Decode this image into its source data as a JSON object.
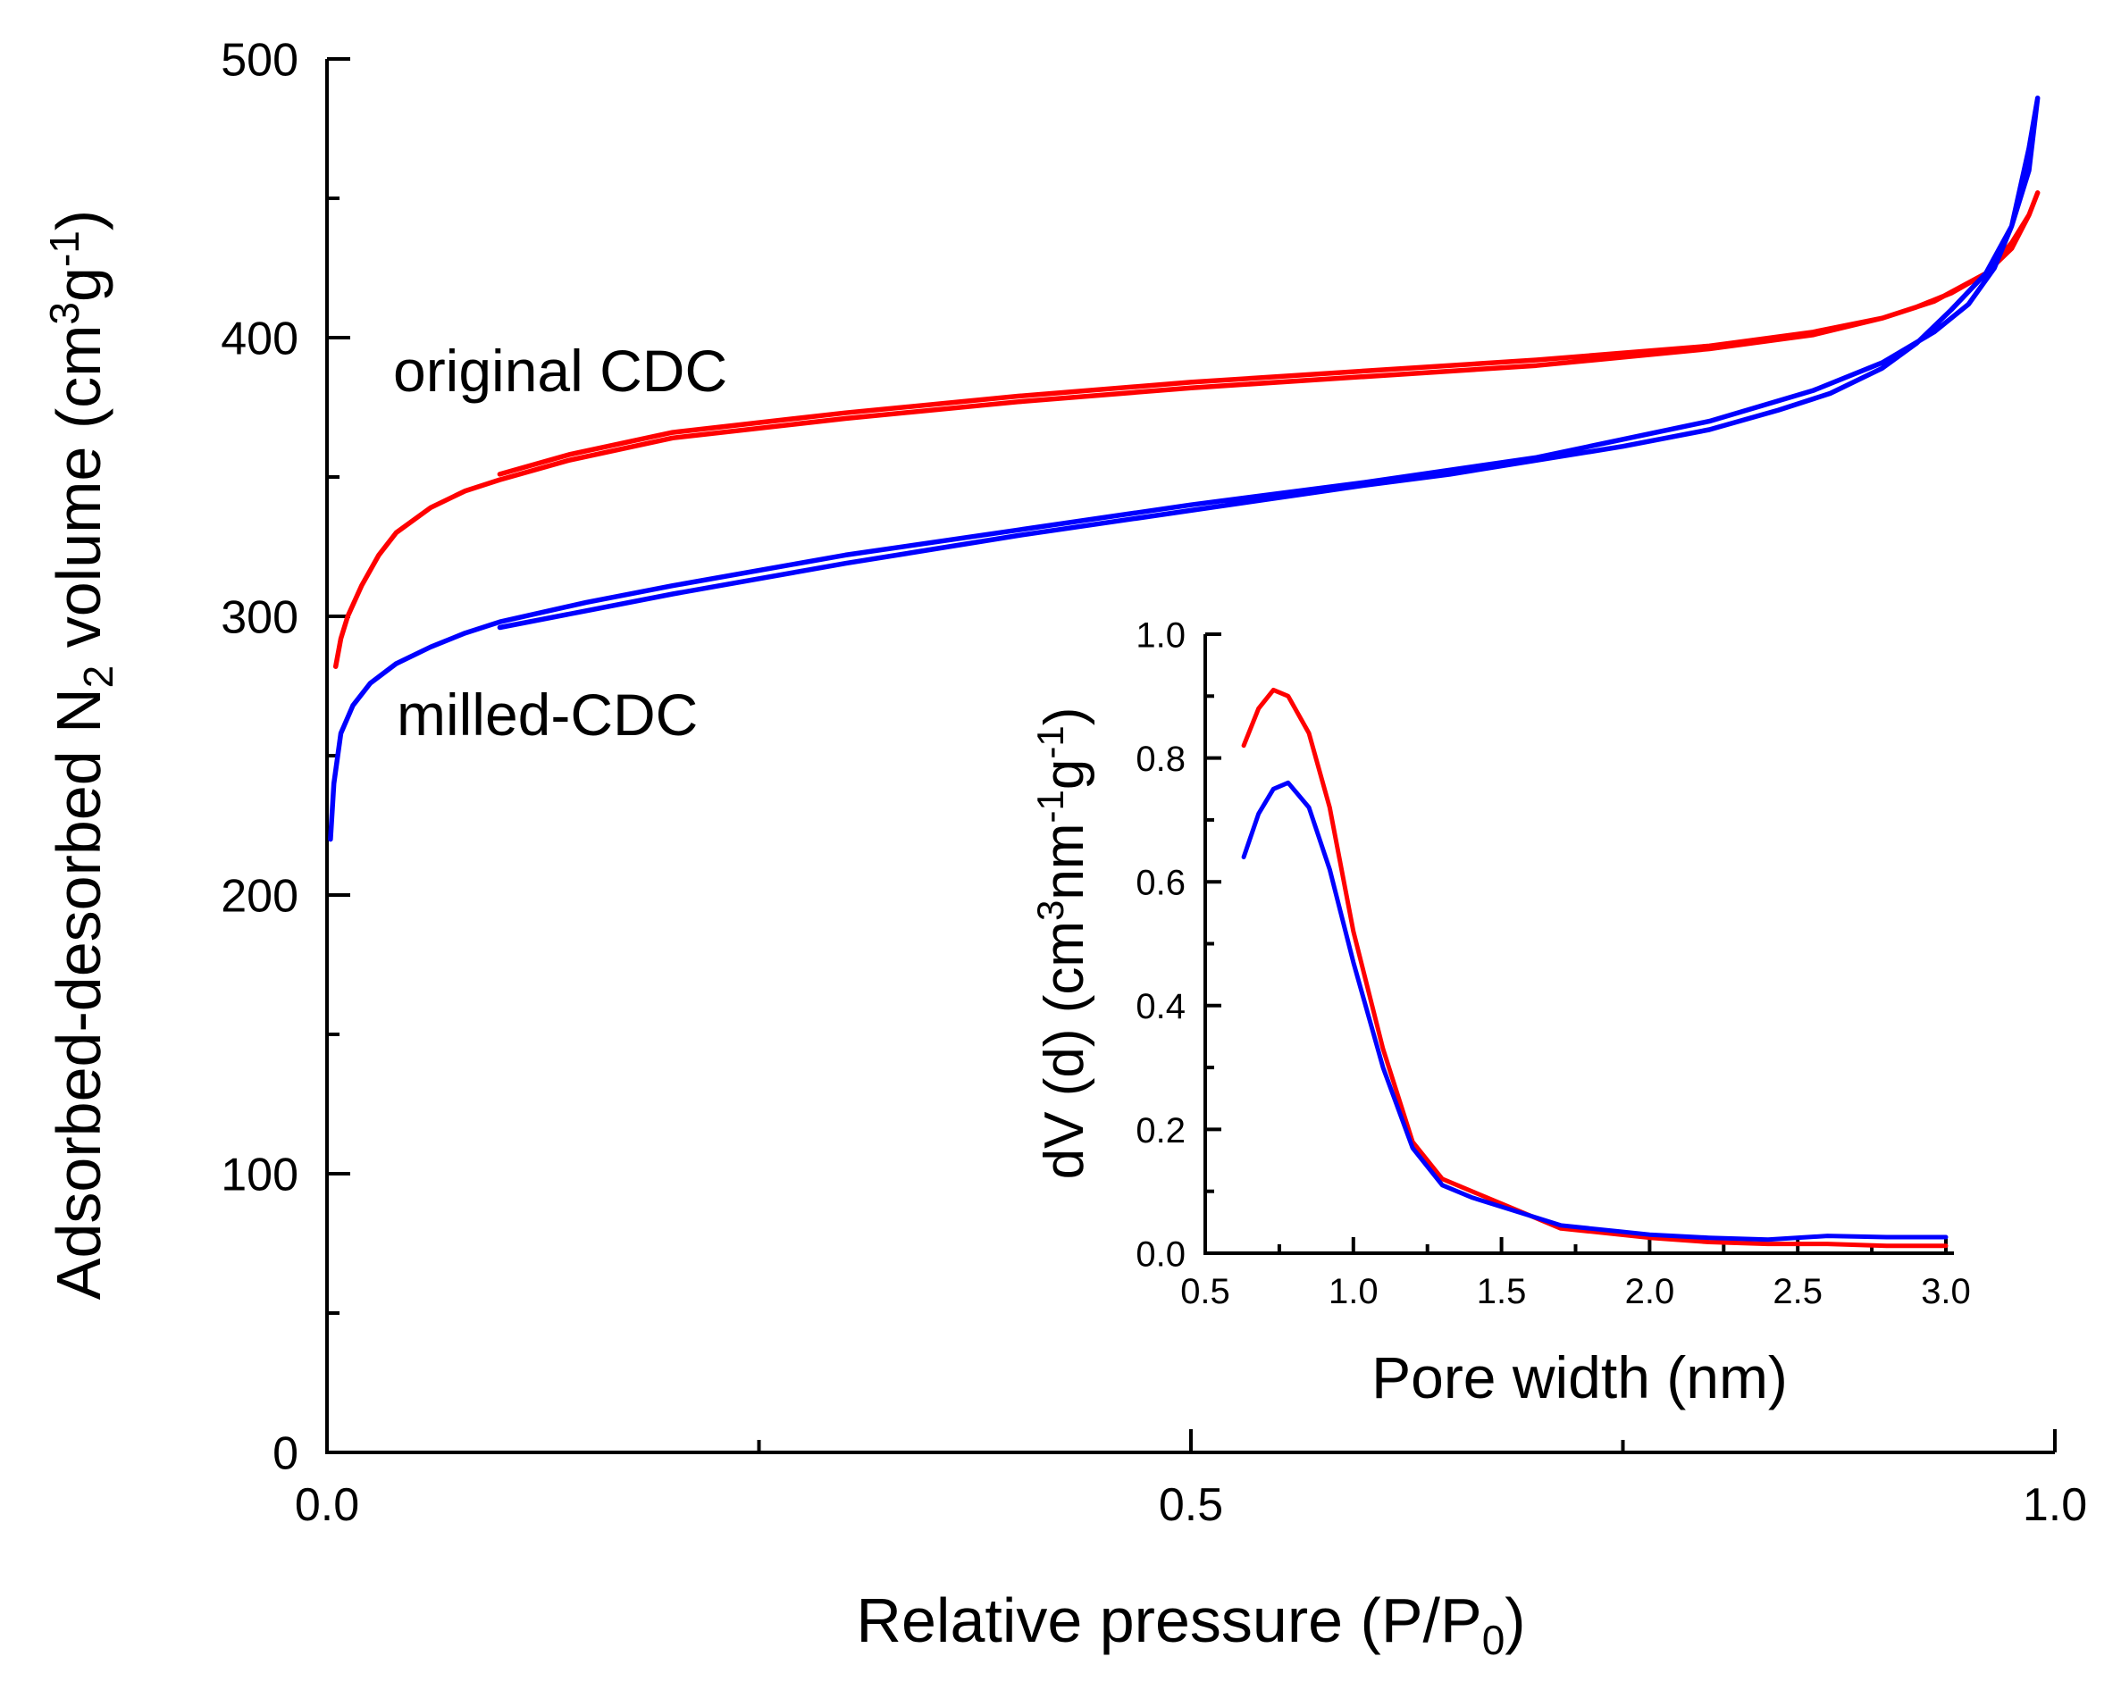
{
  "chart_data": [
    {
      "type": "line",
      "title": "",
      "xlabel": {
        "main": "Relative pressure (P/P",
        "sub": "0",
        "end": ")"
      },
      "ylabel": {
        "a": "Adsorbed-desorbed N",
        "sub": "2",
        "b": " volume (cm",
        "sup1": "3",
        "c": "g",
        "sup2": "-1",
        "d": ")"
      },
      "xlim": [
        0.0,
        1.0
      ],
      "ylim": [
        0,
        500
      ],
      "x_ticks": [
        "0.0",
        "0.5",
        "1.0"
      ],
      "y_ticks": [
        "0",
        "100",
        "200",
        "300",
        "400",
        "500"
      ],
      "annotations": [
        "original CDC",
        "milled-CDC"
      ],
      "series": [
        {
          "name": "original CDC",
          "color": "#ff0000",
          "x": [
            0.005,
            0.008,
            0.012,
            0.02,
            0.03,
            0.04,
            0.06,
            0.08,
            0.1,
            0.14,
            0.2,
            0.3,
            0.4,
            0.5,
            0.6,
            0.7,
            0.8,
            0.86,
            0.9,
            0.93,
            0.96,
            0.975,
            0.985,
            0.99,
            0.985,
            0.975,
            0.96,
            0.94,
            0.92,
            0.9,
            0.86,
            0.8,
            0.7,
            0.6,
            0.5,
            0.4,
            0.3,
            0.2,
            0.14,
            0.1
          ],
          "values": [
            282,
            292,
            300,
            311,
            322,
            330,
            339,
            345,
            349,
            356,
            364,
            371,
            377,
            382,
            386,
            390,
            396,
            401,
            407,
            413,
            423,
            434,
            444,
            452,
            444,
            432,
            423,
            416,
            411,
            407,
            402,
            397,
            392,
            388,
            384,
            379,
            373,
            366,
            358,
            351
          ]
        },
        {
          "name": "milled-CDC",
          "color": "#0000ff",
          "x": [
            0.002,
            0.004,
            0.008,
            0.015,
            0.025,
            0.04,
            0.06,
            0.08,
            0.1,
            0.15,
            0.2,
            0.3,
            0.4,
            0.5,
            0.6,
            0.7,
            0.8,
            0.86,
            0.9,
            0.93,
            0.95,
            0.965,
            0.975,
            0.985,
            0.99,
            0.985,
            0.975,
            0.96,
            0.94,
            0.92,
            0.9,
            0.87,
            0.84,
            0.8,
            0.75,
            0.7,
            0.65,
            0.6,
            0.5,
            0.4,
            0.3,
            0.2,
            0.15,
            0.1
          ],
          "values": [
            220,
            240,
            258,
            268,
            276,
            283,
            289,
            294,
            298,
            305,
            311,
            322,
            331,
            340,
            348,
            357,
            370,
            381,
            391,
            402,
            412,
            425,
            440,
            460,
            486,
            468,
            440,
            423,
            410,
            398,
            389,
            380,
            374,
            367,
            361,
            356,
            351,
            347,
            338,
            329,
            319,
            308,
            302,
            296
          ]
        }
      ]
    },
    {
      "type": "line",
      "title": "",
      "xlabel": "Pore width (nm)",
      "ylabel": {
        "a": "dV (d) (cm",
        "sup1": "3",
        "b": "nm",
        "sup2": "-1",
        "c": "g",
        "sup3": "-1",
        "d": ")"
      },
      "xlim": [
        0.5,
        3.0
      ],
      "ylim": [
        0.0,
        1.0
      ],
      "x_ticks": [
        "0.5",
        "1.0",
        "1.5",
        "2.0",
        "2.5",
        "3.0"
      ],
      "y_ticks": [
        "0.0",
        "0.2",
        "0.4",
        "0.6",
        "0.8",
        "1.0"
      ],
      "series": [
        {
          "name": "original CDC",
          "color": "#ff0000",
          "x": [
            0.63,
            0.68,
            0.73,
            0.78,
            0.85,
            0.92,
            1.0,
            1.1,
            1.2,
            1.3,
            1.4,
            1.5,
            1.6,
            1.7,
            1.8,
            1.9,
            2.0,
            2.2,
            2.4,
            2.6,
            2.8,
            3.0
          ],
          "values": [
            0.82,
            0.88,
            0.91,
            0.9,
            0.84,
            0.72,
            0.52,
            0.33,
            0.18,
            0.12,
            0.1,
            0.08,
            0.06,
            0.04,
            0.035,
            0.03,
            0.025,
            0.018,
            0.015,
            0.015,
            0.012,
            0.012
          ]
        },
        {
          "name": "milled-CDC",
          "color": "#0000ff",
          "x": [
            0.63,
            0.68,
            0.73,
            0.78,
            0.85,
            0.92,
            1.0,
            1.1,
            1.2,
            1.3,
            1.4,
            1.5,
            1.6,
            1.7,
            1.8,
            1.9,
            2.0,
            2.2,
            2.4,
            2.6,
            2.8,
            3.0
          ],
          "values": [
            0.64,
            0.71,
            0.75,
            0.76,
            0.72,
            0.62,
            0.47,
            0.3,
            0.17,
            0.11,
            0.09,
            0.075,
            0.06,
            0.045,
            0.04,
            0.035,
            0.03,
            0.025,
            0.022,
            0.028,
            0.026,
            0.026
          ]
        }
      ]
    }
  ]
}
